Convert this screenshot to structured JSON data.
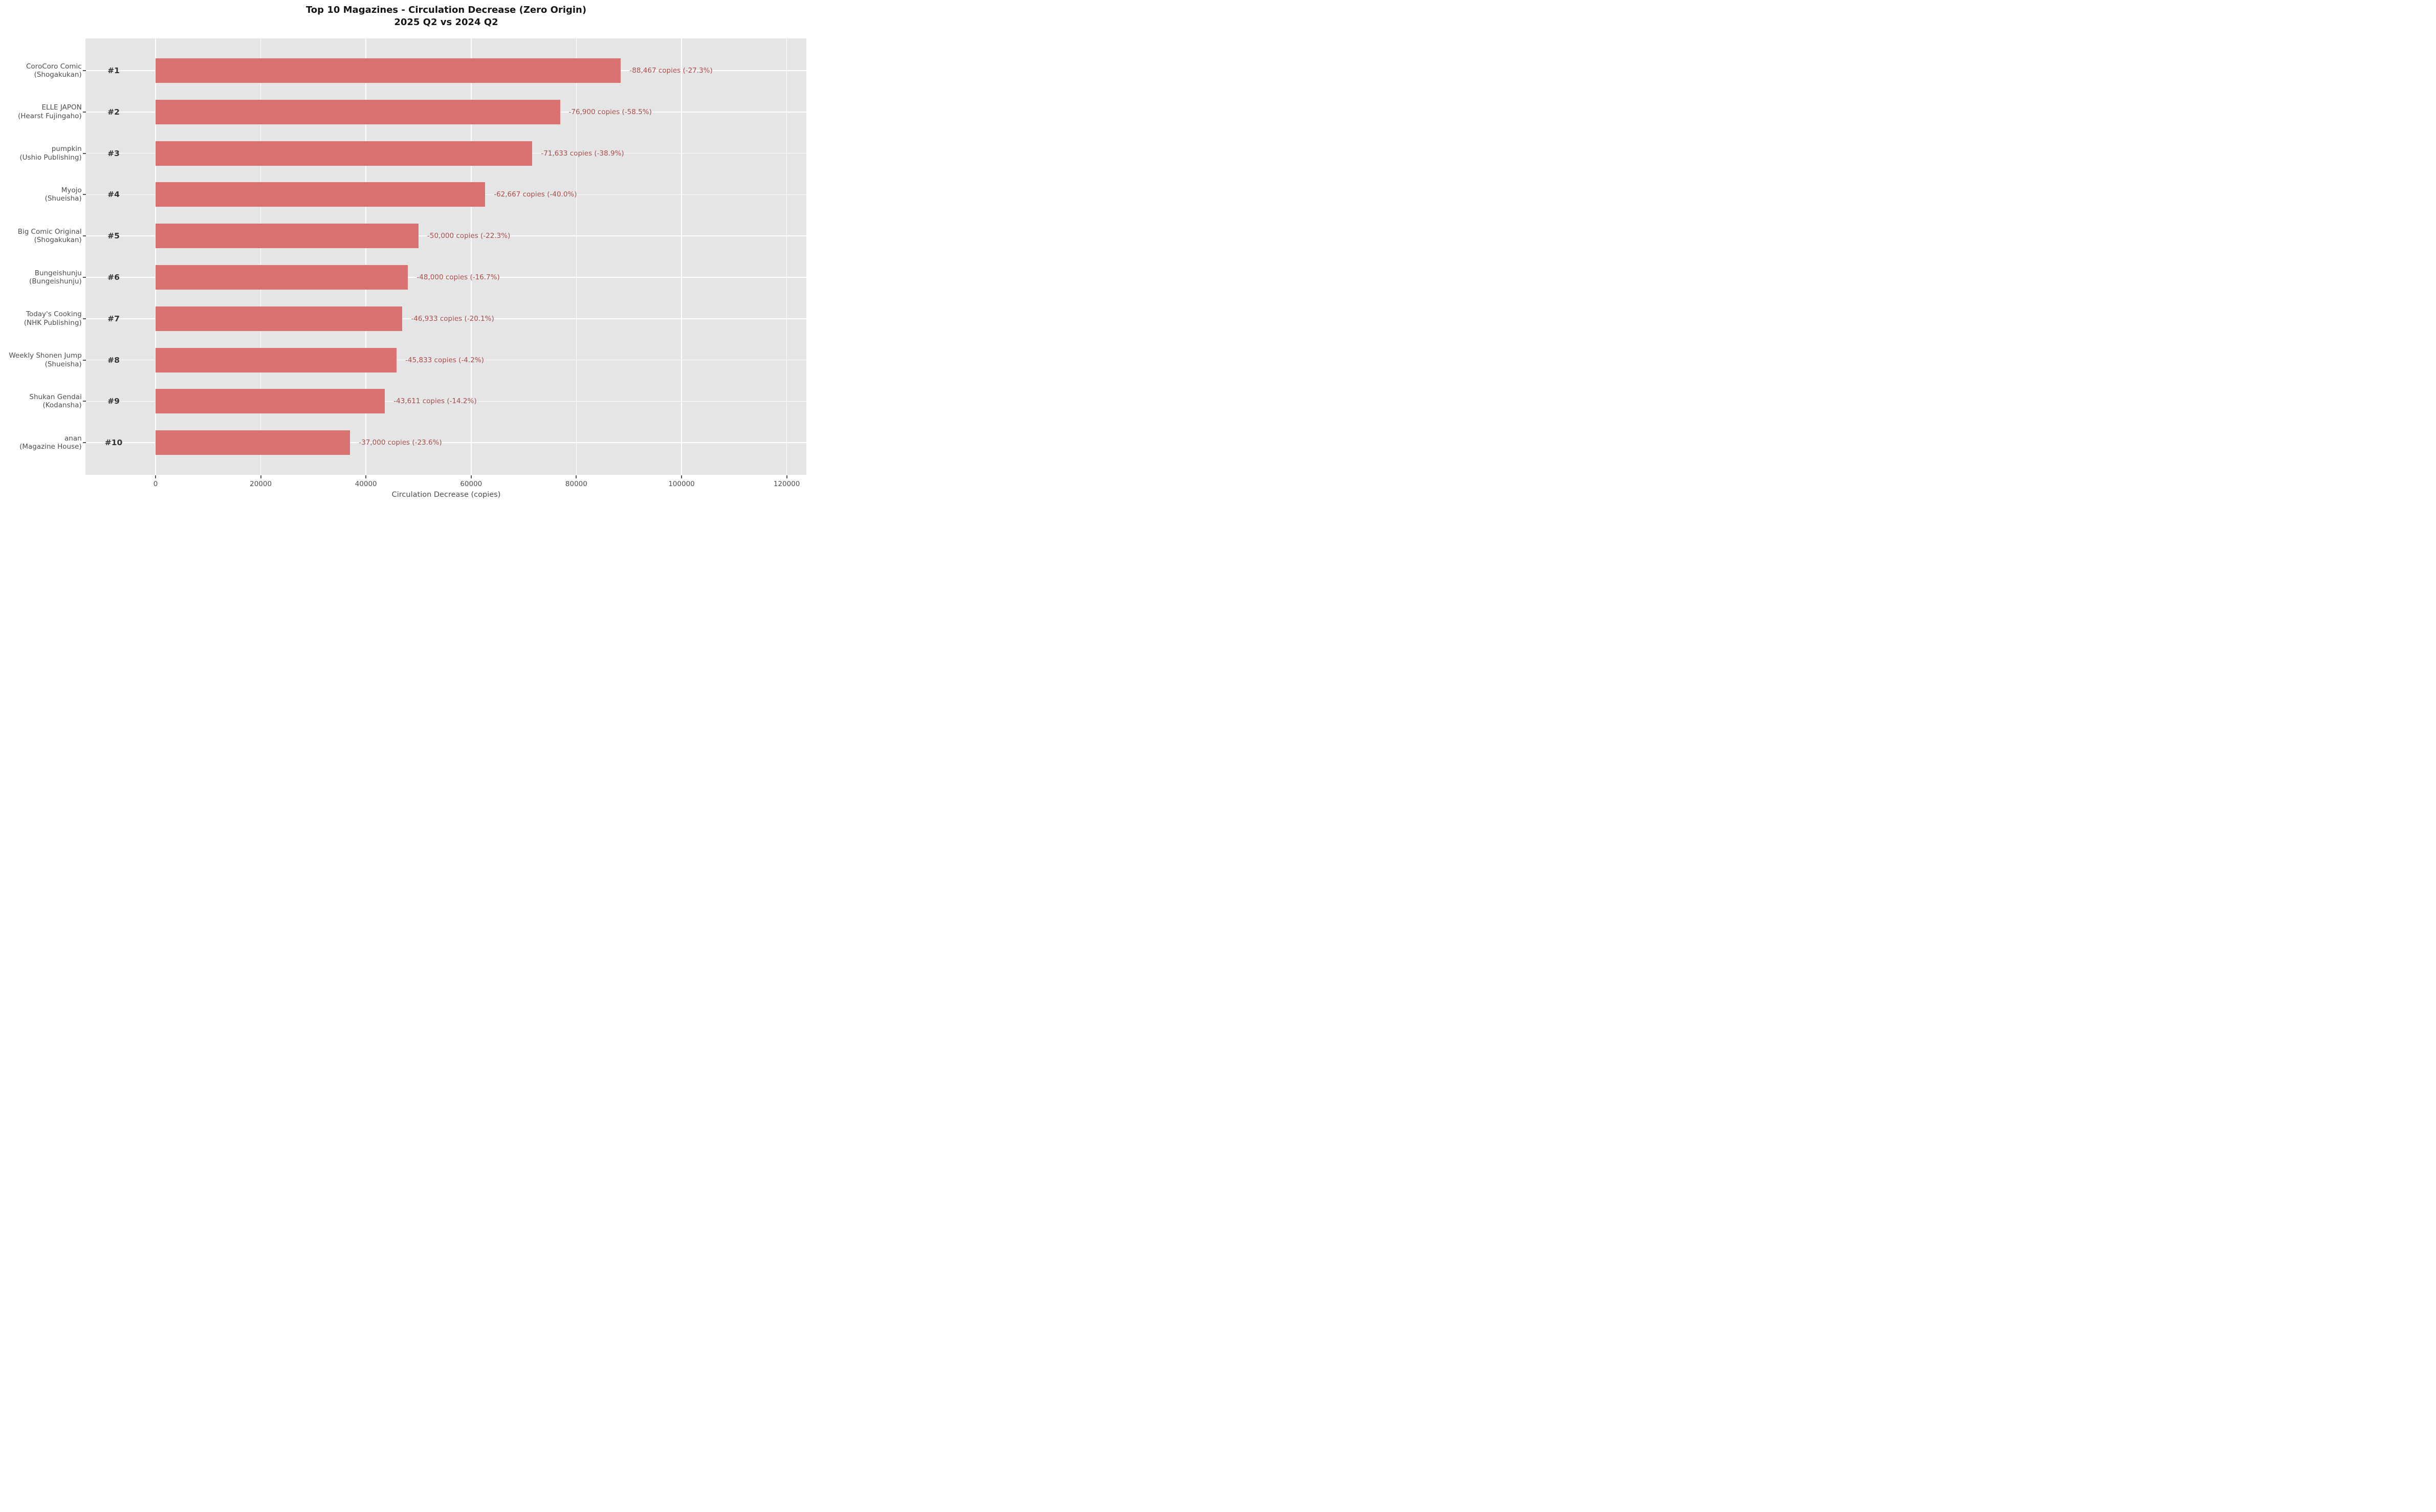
{
  "title": {
    "line1": "Top 10 Magazines - Circulation Decrease (Zero Origin)",
    "line2": "2025 Q2 vs 2024 Q2"
  },
  "x_axis": {
    "label": "Circulation Decrease (copies)",
    "ticks": [
      0,
      20000,
      40000,
      60000,
      80000,
      100000,
      120000
    ]
  },
  "colors": {
    "bar": "#d9716e",
    "value_label": "#aa4a46",
    "plot_background": "#e5e5e5",
    "gridline": "#ffffff",
    "tick_mark": "#555555",
    "axis_text": "#4d4d4d",
    "rank_text": "#333333"
  },
  "chart_data": {
    "type": "bar",
    "orientation": "horizontal",
    "title": "Top 10 Magazines - Circulation Decrease (Zero Origin)",
    "subtitle": "2025 Q2 vs 2024 Q2",
    "xlabel": "Circulation Decrease (copies)",
    "xlim": [
      0,
      122000
    ],
    "x_ticks": [
      0,
      20000,
      40000,
      60000,
      80000,
      100000,
      120000
    ],
    "grid": true,
    "legend": false,
    "bars": [
      {
        "rank": "#1",
        "magazine": "CoroCoro Comic",
        "publisher": "(Shogakukan)",
        "decrease_copies": 88467,
        "percent_change": -27.3,
        "label": "-88,467 copies (-27.3%)"
      },
      {
        "rank": "#2",
        "magazine": "ELLE JAPON",
        "publisher": "(Hearst Fujingaho)",
        "decrease_copies": 76900,
        "percent_change": -58.5,
        "label": "-76,900 copies (-58.5%)"
      },
      {
        "rank": "#3",
        "magazine": "pumpkin",
        "publisher": "(Ushio Publishing)",
        "decrease_copies": 71633,
        "percent_change": -38.9,
        "label": "-71,633 copies (-38.9%)"
      },
      {
        "rank": "#4",
        "magazine": "Myojo",
        "publisher": "(Shueisha)",
        "decrease_copies": 62667,
        "percent_change": -40.0,
        "label": "-62,667 copies (-40.0%)"
      },
      {
        "rank": "#5",
        "magazine": "Big Comic Original",
        "publisher": "(Shogakukan)",
        "decrease_copies": 50000,
        "percent_change": -22.3,
        "label": "-50,000 copies (-22.3%)"
      },
      {
        "rank": "#6",
        "magazine": "Bungeishunju",
        "publisher": "(Bungeishunju)",
        "decrease_copies": 48000,
        "percent_change": -16.7,
        "label": "-48,000 copies (-16.7%)"
      },
      {
        "rank": "#7",
        "magazine": "Today's Cooking",
        "publisher": "(NHK Publishing)",
        "decrease_copies": 46933,
        "percent_change": -20.1,
        "label": "-46,933 copies (-20.1%)"
      },
      {
        "rank": "#8",
        "magazine": "Weekly Shonen Jump",
        "publisher": "(Shueisha)",
        "decrease_copies": 45833,
        "percent_change": -4.2,
        "label": "-45,833 copies (-4.2%)"
      },
      {
        "rank": "#9",
        "magazine": "Shukan Gendai",
        "publisher": "(Kodansha)",
        "decrease_copies": 43611,
        "percent_change": -14.2,
        "label": "-43,611 copies (-14.2%)"
      },
      {
        "rank": "#10",
        "magazine": "anan",
        "publisher": "(Magazine House)",
        "decrease_copies": 37000,
        "percent_change": -23.6,
        "label": "-37,000 copies (-23.6%)"
      }
    ]
  }
}
